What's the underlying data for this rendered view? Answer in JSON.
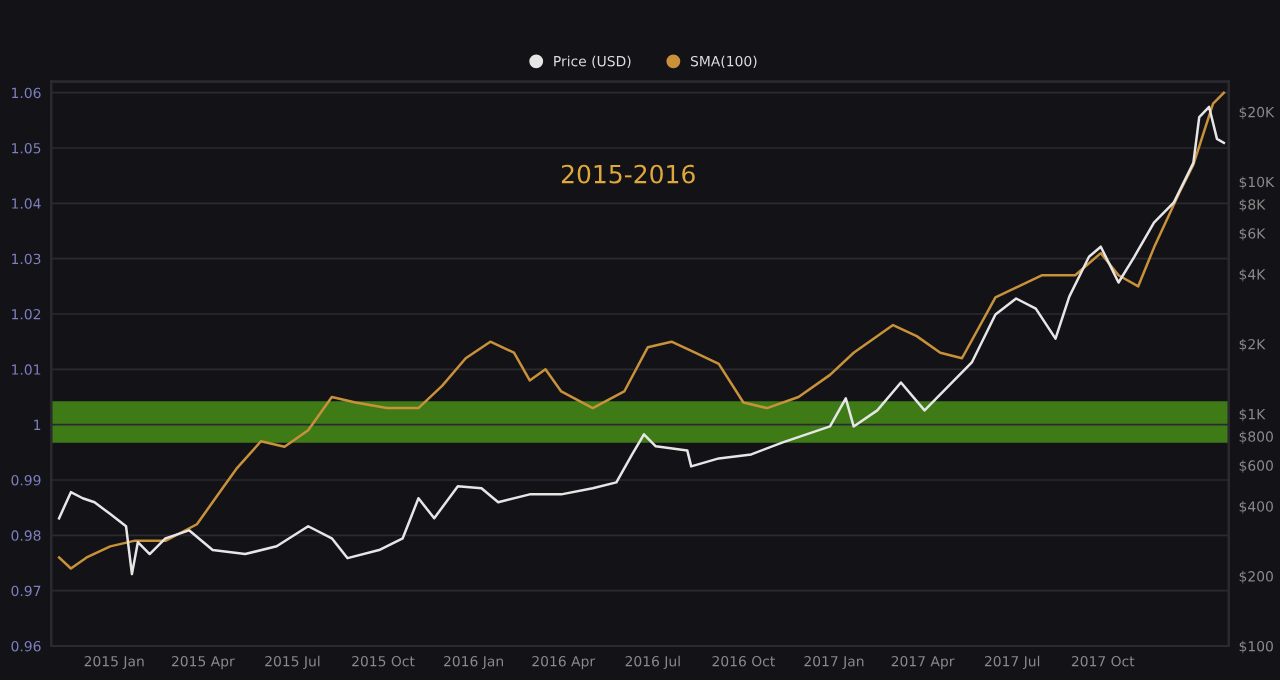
{
  "chart_data": {
    "type": "line",
    "annotations": [
      "2015-2016"
    ],
    "xlim": [
      "2014-10-29",
      "2018-02-06"
    ],
    "xticks": [
      {
        "value": "2015-01-01",
        "label": "2015 Jan"
      },
      {
        "value": "2015-04-01",
        "label": "2015 Apr"
      },
      {
        "value": "2015-07-01",
        "label": "2015 Jul"
      },
      {
        "value": "2015-10-01",
        "label": "2015 Oct"
      },
      {
        "value": "2016-01-01",
        "label": "2016 Jan"
      },
      {
        "value": "2016-04-01",
        "label": "2016 Apr"
      },
      {
        "value": "2016-07-01",
        "label": "2016 Jul"
      },
      {
        "value": "2016-10-01",
        "label": "2016 Oct"
      },
      {
        "value": "2017-01-01",
        "label": "2017 Jan"
      },
      {
        "value": "2017-04-01",
        "label": "2017 Apr"
      },
      {
        "value": "2017-07-01",
        "label": "2017 Jul"
      },
      {
        "value": "2017-10-01",
        "label": "2017 Oct"
      }
    ],
    "ylim": [
      0.96,
      1.062
    ],
    "yticks": [
      0.96,
      0.97,
      0.98,
      0.99,
      1,
      1.01,
      1.02,
      1.03,
      1.04,
      1.05,
      1.06
    ],
    "log": "y2",
    "y2lim": [
      100,
      27000
    ],
    "y2ticks": [
      {
        "value": 100,
        "label": "$100"
      },
      {
        "value": 200,
        "label": "$200"
      },
      {
        "value": 400,
        "label": "$400"
      },
      {
        "value": 600,
        "label": "$600"
      },
      {
        "value": 800,
        "label": "$800"
      },
      {
        "value": 1000,
        "label": "$1K"
      },
      {
        "value": 2000,
        "label": "$2K"
      },
      {
        "value": 4000,
        "label": "$4K"
      },
      {
        "value": 6000,
        "label": "$6K"
      },
      {
        "value": 8000,
        "label": "$8K"
      },
      {
        "value": 10000,
        "label": "$10K"
      },
      {
        "value": 20000,
        "label": "$20K"
      }
    ],
    "grid": "y",
    "legend": "top",
    "marker": "none",
    "line_style": "solid",
    "bands": [
      {
        "axis": "y",
        "from": 0.997,
        "to": 1.004,
        "color": "#3e7b17"
      }
    ],
    "series": [
      {
        "name": "Price (USD)",
        "color": "#e6e6e6",
        "axis": "y2",
        "x": [
          "2014-11-06",
          "2014-11-18",
          "2014-11-30",
          "2014-12-12",
          "2014-12-28",
          "2015-01-13",
          "2015-01-19",
          "2015-01-25",
          "2015-02-06",
          "2015-02-22",
          "2015-03-18",
          "2015-04-11",
          "2015-05-14",
          "2015-06-15",
          "2015-07-17",
          "2015-08-10",
          "2015-08-26",
          "2015-09-27",
          "2015-10-21",
          "2015-11-06",
          "2015-11-22",
          "2015-12-16",
          "2016-01-09",
          "2016-01-26",
          "2016-02-27",
          "2016-03-30",
          "2016-05-01",
          "2016-05-25",
          "2016-06-10",
          "2016-06-22",
          "2016-07-04",
          "2016-08-05",
          "2016-08-09",
          "2016-09-06",
          "2016-10-09",
          "2016-11-10",
          "2016-12-28",
          "2017-01-13",
          "2017-01-21",
          "2017-02-14",
          "2017-03-10",
          "2017-04-03",
          "2017-04-27",
          "2017-05-21",
          "2017-06-14",
          "2017-07-05",
          "2017-07-25",
          "2017-08-14",
          "2017-08-28",
          "2017-09-17",
          "2017-09-29",
          "2017-10-17",
          "2017-11-02",
          "2017-11-22",
          "2017-12-12",
          "2018-01-01",
          "2018-01-07",
          "2018-01-17",
          "2018-01-25",
          "2018-02-01"
        ],
        "values": [
          355,
          460,
          433,
          416,
          370,
          328,
          204,
          280,
          249,
          291,
          315,
          259,
          249,
          269,
          328,
          291,
          239,
          259,
          291,
          433,
          355,
          488,
          478,
          416,
          450,
          450,
          478,
          507,
          669,
          816,
          725,
          696,
          594,
          643,
          669,
          754,
          883,
          1166,
          883,
          1035,
          1365,
          1035,
          1313,
          1665,
          2680,
          3140,
          2840,
          2110,
          3200,
          4750,
          5250,
          3680,
          4750,
          6660,
          8120,
          12060,
          19000,
          21000,
          15300,
          14700
        ]
      },
      {
        "name": "SMA(100)",
        "color": "#c8913a",
        "axis": "y",
        "x": [
          "2014-11-06",
          "2014-11-18",
          "2014-12-04",
          "2014-12-28",
          "2015-01-21",
          "2015-02-22",
          "2015-03-26",
          "2015-04-19",
          "2015-05-05",
          "2015-05-30",
          "2015-06-23",
          "2015-07-17",
          "2015-08-10",
          "2015-09-03",
          "2015-10-05",
          "2015-11-06",
          "2015-11-30",
          "2015-12-24",
          "2016-01-18",
          "2016-02-11",
          "2016-02-27",
          "2016-03-14",
          "2016-03-30",
          "2016-05-01",
          "2016-06-02",
          "2016-06-26",
          "2016-07-20",
          "2016-08-13",
          "2016-09-06",
          "2016-10-01",
          "2016-10-25",
          "2016-11-26",
          "2016-12-28",
          "2017-01-21",
          "2017-03-02",
          "2017-03-26",
          "2017-04-19",
          "2017-05-11",
          "2017-06-14",
          "2017-07-31",
          "2017-09-03",
          "2017-09-29",
          "2017-10-17",
          "2017-11-06",
          "2017-11-22",
          "2017-12-18",
          "2018-01-01",
          "2018-01-21",
          "2018-02-01"
        ],
        "values": [
          0.976,
          0.974,
          0.976,
          0.978,
          0.979,
          0.979,
          0.982,
          0.988,
          0.992,
          0.997,
          0.996,
          0.999,
          1.005,
          1.004,
          1.003,
          1.003,
          1.007,
          1.012,
          1.015,
          1.013,
          1.008,
          1.01,
          1.006,
          1.003,
          1.006,
          1.014,
          1.015,
          1.013,
          1.011,
          1.004,
          1.003,
          1.005,
          1.009,
          1.013,
          1.018,
          1.016,
          1.013,
          1.012,
          1.023,
          1.027,
          1.027,
          1.031,
          1.027,
          1.025,
          1.032,
          1.042,
          1.047,
          1.058,
          1.06
        ]
      }
    ]
  }
}
